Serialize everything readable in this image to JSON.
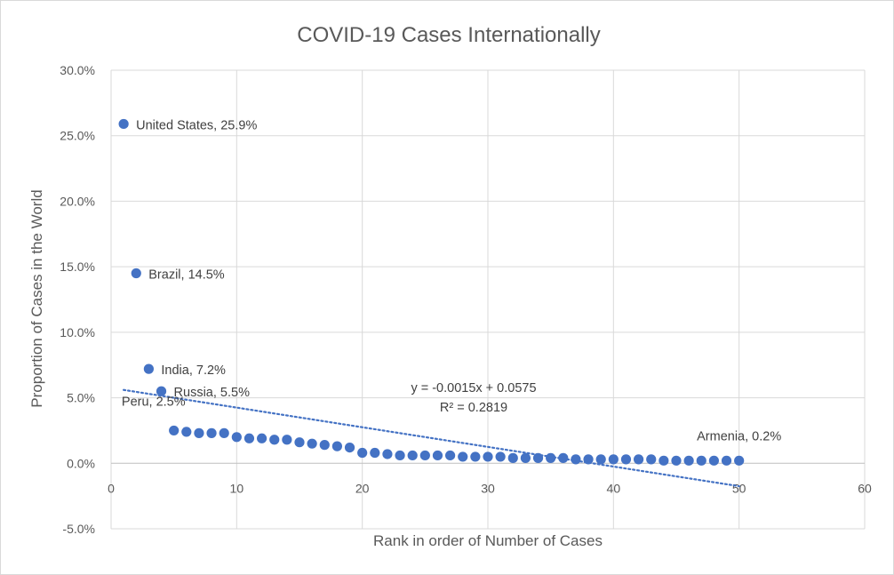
{
  "chart_data": {
    "type": "scatter",
    "title": "COVID-19 Cases Internationally",
    "xlabel": "Rank in order of Number of Cases",
    "ylabel": "Proportion of Cases in the World",
    "xlim": [
      0,
      60
    ],
    "ylim": [
      -0.05,
      0.3
    ],
    "x_ticks": [
      0,
      10,
      20,
      30,
      40,
      50,
      60
    ],
    "y_ticks": [
      -0.05,
      0.0,
      0.05,
      0.1,
      0.15,
      0.2,
      0.25,
      0.3
    ],
    "x_tick_labels": [
      "0",
      "10",
      "20",
      "30",
      "40",
      "50",
      "60"
    ],
    "y_tick_labels": [
      "-5.0%",
      "0.0%",
      "5.0%",
      "10.0%",
      "15.0%",
      "20.0%",
      "25.0%",
      "30.0%"
    ],
    "grid": true,
    "marker_color": "#4472c4",
    "trendline_color": "#4472c4",
    "x": [
      1,
      2,
      3,
      4,
      5,
      6,
      7,
      8,
      9,
      10,
      11,
      12,
      13,
      14,
      15,
      16,
      17,
      18,
      19,
      20,
      21,
      22,
      23,
      24,
      25,
      26,
      27,
      28,
      29,
      30,
      31,
      32,
      33,
      34,
      35,
      36,
      37,
      38,
      39,
      40,
      41,
      42,
      43,
      44,
      45,
      46,
      47,
      48,
      49,
      50
    ],
    "y": [
      0.259,
      0.145,
      0.072,
      0.055,
      0.025,
      0.024,
      0.023,
      0.023,
      0.023,
      0.02,
      0.019,
      0.019,
      0.018,
      0.018,
      0.016,
      0.015,
      0.014,
      0.013,
      0.012,
      0.008,
      0.008,
      0.007,
      0.006,
      0.006,
      0.006,
      0.006,
      0.006,
      0.005,
      0.005,
      0.005,
      0.005,
      0.004,
      0.004,
      0.004,
      0.004,
      0.004,
      0.003,
      0.003,
      0.003,
      0.003,
      0.003,
      0.003,
      0.003,
      0.002,
      0.002,
      0.002,
      0.002,
      0.002,
      0.002,
      0.002
    ],
    "data_labels": [
      {
        "index": 0,
        "text": "United States, 25.9%"
      },
      {
        "index": 1,
        "text": "Brazil, 14.5%"
      },
      {
        "index": 2,
        "text": "India, 7.2%"
      },
      {
        "index": 3,
        "text": "Russia, 5.5%"
      },
      {
        "index": 4,
        "text": "Peru, 2.5%"
      },
      {
        "index": 49,
        "text": "Armenia, 0.2%"
      }
    ],
    "trendline": {
      "type": "linear",
      "slope": -0.0015,
      "intercept": 0.0575,
      "x_range": [
        1,
        50
      ],
      "equation": "y = -0.0015x + 0.0575",
      "r_squared": "R² = 0.2819"
    }
  }
}
